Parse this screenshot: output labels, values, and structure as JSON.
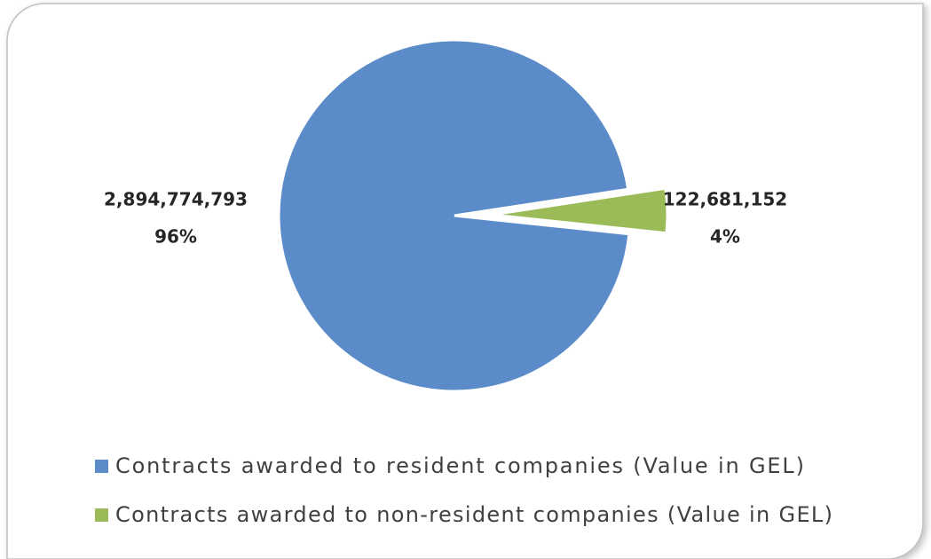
{
  "chart_data": {
    "type": "pie",
    "categories": [
      "Contracts awarded to resident companies (Value in GEL)",
      "Contracts awarded to non-resident companies (Value in GEL)"
    ],
    "values": [
      2894774793,
      122681152
    ],
    "value_labels": [
      "2,894,774,793",
      "122,681,152"
    ],
    "percents": [
      96,
      4
    ],
    "percent_labels": [
      "96%",
      "4%"
    ],
    "colors": [
      "#5b8bc9",
      "#9bbb59"
    ]
  }
}
